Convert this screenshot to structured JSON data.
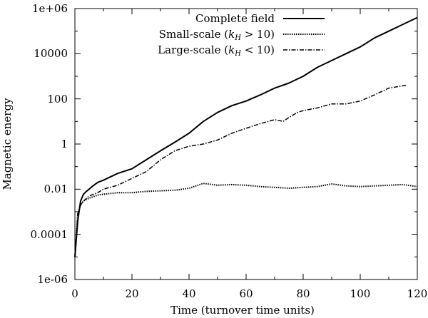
{
  "chart_data": {
    "type": "line",
    "xlabel": "Time (turnover time units)",
    "ylabel": "Magnetic energy",
    "xscale": "linear",
    "yscale": "log",
    "xlim": [
      0,
      120
    ],
    "ylim": [
      1e-06,
      1000000.0
    ],
    "x_ticks": [
      0,
      20,
      40,
      60,
      80,
      100,
      120
    ],
    "x_tick_labels": [
      "0",
      "20",
      "40",
      "60",
      "80",
      "100",
      "120"
    ],
    "y_ticks": [
      1e-06,
      0.0001,
      0.01,
      1,
      100,
      10000.0,
      1000000.0
    ],
    "y_tick_labels": [
      "1e-06",
      "0.0001",
      "0.01",
      "1",
      "100",
      "10000",
      "1e+06"
    ],
    "legend_position": "top-right",
    "series": [
      {
        "name": "Complete field",
        "style": "solid",
        "x": [
          0,
          1,
          2,
          3,
          4,
          5,
          6,
          8,
          10,
          15,
          20,
          25,
          30,
          35,
          40,
          45,
          50,
          55,
          60,
          65,
          70,
          75,
          80,
          85,
          90,
          95,
          100,
          105,
          110,
          115,
          120
        ],
        "y": [
          1e-05,
          0.0004,
          0.003,
          0.006,
          0.008,
          0.01,
          0.013,
          0.02,
          0.025,
          0.05,
          0.08,
          0.2,
          0.5,
          1.2,
          3,
          10,
          25,
          50,
          80,
          150,
          300,
          500,
          1000,
          2500,
          5000,
          10000,
          20000,
          50000,
          100000,
          200000,
          400000
        ]
      },
      {
        "name": "Small-scale (k_H > 10)",
        "legend_label": "Small-scale (",
        "legend_sub_k": "k",
        "legend_sub_h": "H",
        "legend_tail": " > 10)",
        "style": "dotted",
        "x": [
          0,
          1,
          2,
          3,
          5,
          8,
          10,
          15,
          20,
          25,
          30,
          35,
          40,
          45,
          50,
          55,
          60,
          65,
          70,
          75,
          80,
          85,
          90,
          95,
          100,
          105,
          110,
          115,
          120
        ],
        "y": [
          1e-05,
          0.0008,
          0.002,
          0.003,
          0.004,
          0.0055,
          0.006,
          0.007,
          0.007,
          0.008,
          0.0085,
          0.009,
          0.011,
          0.018,
          0.015,
          0.016,
          0.015,
          0.013,
          0.012,
          0.011,
          0.012,
          0.013,
          0.017,
          0.014,
          0.013,
          0.014,
          0.015,
          0.016,
          0.013
        ]
      },
      {
        "name": "Large-scale (k_H < 10)",
        "legend_label": "Large-scale (",
        "legend_sub_k": "k",
        "legend_sub_h": "H",
        "legend_tail": " < 10)",
        "style": "dash-dot",
        "x": [
          0,
          1,
          2,
          3,
          5,
          8,
          10,
          15,
          20,
          25,
          30,
          35,
          40,
          45,
          50,
          55,
          60,
          65,
          70,
          73,
          75,
          78,
          80,
          85,
          90,
          95,
          100,
          105,
          110,
          116
        ],
        "y": [
          1e-05,
          0.0008,
          0.002,
          0.003,
          0.005,
          0.007,
          0.01,
          0.015,
          0.03,
          0.06,
          0.2,
          0.5,
          0.8,
          1.0,
          1.5,
          3,
          5,
          8,
          12,
          10,
          15,
          25,
          30,
          40,
          60,
          60,
          80,
          150,
          300,
          400
        ]
      }
    ]
  }
}
